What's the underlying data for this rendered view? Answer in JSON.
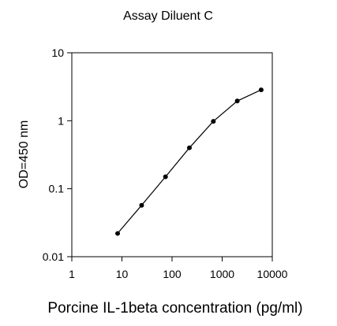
{
  "chart_data": {
    "type": "line",
    "title": "Assay Diluent C",
    "xlabel": "Porcine IL-1beta concentration (pg/ml)",
    "ylabel": "OD=450 nm",
    "x_scale": "log",
    "y_scale": "log",
    "xlim": [
      1,
      10000
    ],
    "ylim": [
      0.01,
      10
    ],
    "x_ticks": [
      1,
      10,
      100,
      1000,
      10000
    ],
    "x_tick_labels": [
      "1",
      "10",
      "100",
      "1000",
      "10000"
    ],
    "y_ticks": [
      0.01,
      0.1,
      1,
      10
    ],
    "y_tick_labels": [
      "0.01",
      "0.1",
      "1",
      "10"
    ],
    "grid": false,
    "legend": "none",
    "series": [
      {
        "x": [
          8.2,
          24.7,
          74,
          222,
          667,
          2000,
          6000
        ],
        "y": [
          0.022,
          0.057,
          0.15,
          0.4,
          0.98,
          1.95,
          2.85
        ],
        "color": "#000000",
        "marker": "circle"
      }
    ]
  }
}
